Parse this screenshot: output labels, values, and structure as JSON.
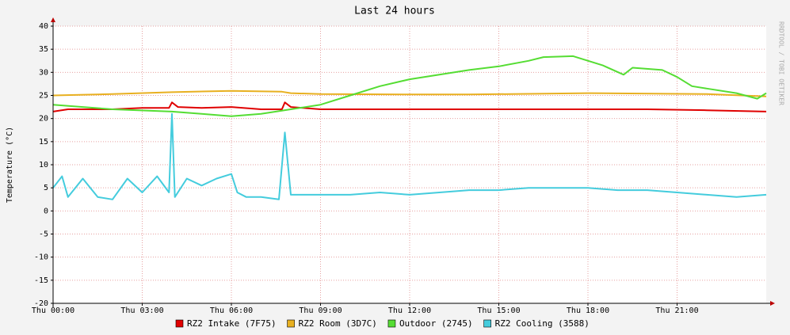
{
  "chart_data": {
    "type": "line",
    "title": "Last 24 hours",
    "y_label": "Temperature (°C)",
    "side_note": "RRDTOOL / TOBI OETIKER",
    "xlim": [
      0,
      24
    ],
    "xticks": [
      {
        "value": 0,
        "label": "Thu 00:00"
      },
      {
        "value": 3,
        "label": "Thu 03:00"
      },
      {
        "value": 6,
        "label": "Thu 06:00"
      },
      {
        "value": 9,
        "label": "Thu 09:00"
      },
      {
        "value": 12,
        "label": "Thu 12:00"
      },
      {
        "value": 15,
        "label": "Thu 15:00"
      },
      {
        "value": 18,
        "label": "Thu 18:00"
      },
      {
        "value": 21,
        "label": "Thu 21:00"
      }
    ],
    "ylim": [
      -20,
      40
    ],
    "yticks": [
      -20,
      -15,
      -10,
      -5,
      0,
      5,
      10,
      15,
      20,
      25,
      30,
      35,
      40
    ],
    "grid": true,
    "series": [
      {
        "name": "RZ2 Intake (7F75)",
        "color": "#e00000",
        "x": [
          0,
          0.5,
          1,
          2,
          3,
          3.9,
          4,
          4.2,
          5,
          6,
          7,
          7.7,
          7.8,
          8,
          9,
          12,
          16,
          20,
          22,
          24
        ],
        "values": [
          21.5,
          22,
          22,
          22,
          22.3,
          22.3,
          23.5,
          22.5,
          22.3,
          22.5,
          22,
          22,
          23.5,
          22.5,
          22,
          22,
          22,
          22,
          21.8,
          21.5
        ]
      },
      {
        "name": "RZ2 Room (3D7C)",
        "color": "#e8b020",
        "x": [
          0,
          2,
          4,
          6,
          7.7,
          8,
          9,
          12,
          14,
          18,
          22,
          24
        ],
        "values": [
          25,
          25.3,
          25.7,
          26,
          25.8,
          25.5,
          25.3,
          25.2,
          25.2,
          25.5,
          25.3,
          24.8
        ]
      },
      {
        "name": "Outdoor (2745)",
        "color": "#55dd33",
        "x": [
          0,
          1,
          2,
          4,
          5,
          6,
          7,
          8,
          9,
          10,
          11,
          12,
          13,
          14,
          15,
          16,
          16.5,
          17.5,
          18.5,
          19.2,
          19.5,
          20.5,
          21,
          21.5,
          22,
          23,
          23.7,
          24
        ],
        "values": [
          23,
          22.5,
          22,
          21.5,
          21,
          20.5,
          21,
          22,
          23,
          25,
          27,
          28.5,
          29.5,
          30.5,
          31.3,
          32.5,
          33.3,
          33.5,
          31.5,
          29.5,
          31,
          30.5,
          29,
          27,
          26.5,
          25.5,
          24.3,
          25.5
        ]
      },
      {
        "name": "RZ2 Cooling (3588)",
        "color": "#44ccdd",
        "x": [
          0,
          0.3,
          0.5,
          1,
          1.5,
          2,
          2.5,
          3,
          3.5,
          3.9,
          4,
          4.1,
          4.5,
          5,
          5.5,
          6,
          6.2,
          6.5,
          7,
          7.6,
          7.8,
          8,
          9,
          10,
          11,
          12,
          13,
          14,
          15,
          16,
          17,
          18,
          19,
          20,
          21,
          22,
          23,
          24
        ],
        "values": [
          5,
          7.5,
          3,
          7,
          3,
          2.5,
          7,
          4,
          7.5,
          4,
          21,
          3,
          7,
          5.5,
          7,
          8,
          4,
          3,
          3,
          2.5,
          17,
          3.5,
          3.5,
          3.5,
          4,
          3.5,
          4,
          4.5,
          4.5,
          5,
          5,
          5,
          4.5,
          4.5,
          4,
          3.5,
          3,
          3.5
        ]
      }
    ]
  }
}
